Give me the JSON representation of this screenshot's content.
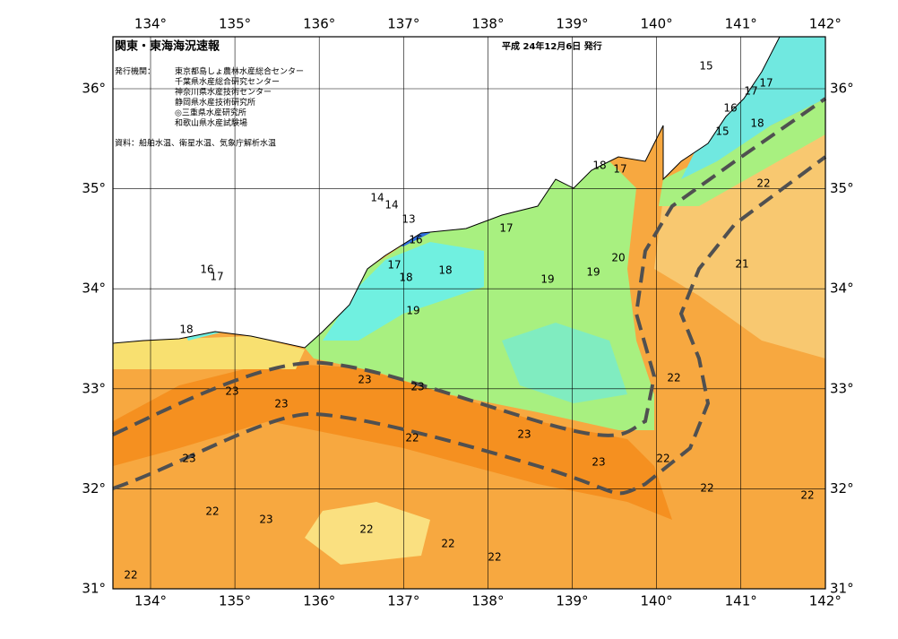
{
  "header": {
    "title": "関東・東海海況速報",
    "issued": "平成 24年12月6日 発行",
    "agencies_label": "発行機関：",
    "agencies": [
      "東京都島しょ農林水産総合センター",
      "千葉県水産総合研究センター",
      "神奈川県水産技術センター",
      "静岡県水産技術研究所",
      "◎三重県水産研究所",
      "和歌山県水産試験場"
    ],
    "source": "資料：船舶水温、衛星水温、気象庁解析水温"
  },
  "map": {
    "lon_ticks": [
      {
        "value": 134,
        "label": "134°"
      },
      {
        "value": 135,
        "label": "135°"
      },
      {
        "value": 136,
        "label": "136°"
      },
      {
        "value": 137,
        "label": "137°"
      },
      {
        "value": 138,
        "label": "138°"
      },
      {
        "value": 139,
        "label": "139°"
      },
      {
        "value": 140,
        "label": "140°"
      },
      {
        "value": 141,
        "label": "141°"
      },
      {
        "value": 142,
        "label": "142°"
      }
    ],
    "lat_ticks": [
      {
        "value": 31,
        "label": "31°"
      },
      {
        "value": 32,
        "label": "32°"
      },
      {
        "value": 33,
        "label": "33°"
      },
      {
        "value": 34,
        "label": "34°"
      },
      {
        "value": 35,
        "label": "35°"
      },
      {
        "value": 36,
        "label": "36°"
      }
    ],
    "contour_labels": [
      15,
      17,
      17,
      16,
      18,
      15,
      22,
      21,
      18,
      17,
      14,
      14,
      13,
      16,
      17,
      17,
      18,
      18,
      20,
      19,
      19,
      19,
      16,
      17,
      18,
      23,
      23,
      23,
      23,
      22,
      23,
      23,
      22,
      22,
      23,
      22,
      23,
      22,
      22,
      22,
      22,
      22,
      22
    ]
  }
}
